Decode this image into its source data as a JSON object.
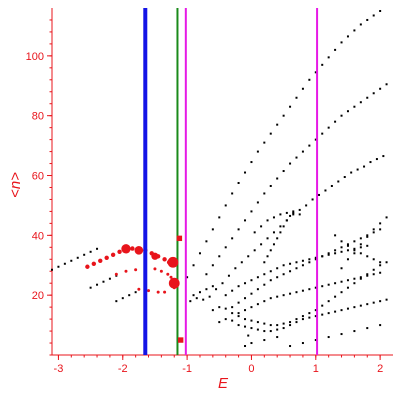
{
  "chart_data": {
    "type": "scatter",
    "title": "",
    "xlabel": "E",
    "ylabel": "<n>",
    "xlim": [
      -3.1,
      2.2
    ],
    "ylim": [
      0,
      116
    ],
    "x_ticks": [
      -3,
      -2,
      -1,
      0,
      1,
      2
    ],
    "y_ticks": [
      20,
      40,
      60,
      80,
      100
    ],
    "grid": false,
    "axis_color": "#e8141b",
    "vertical_lines": [
      {
        "x": -1.65,
        "color": "#1414e6",
        "style": "thick"
      },
      {
        "x": -1.15,
        "color": "#1a8a1a",
        "style": "medium"
      },
      {
        "x": -1.02,
        "color": "#e619e6",
        "style": "medium"
      },
      {
        "x": 1.02,
        "color": "#e619e6",
        "style": "medium"
      }
    ],
    "highlighted_points": {
      "color": "#e8141b",
      "points": [
        {
          "x": -1.22,
          "y": 31,
          "weight": 3
        },
        {
          "x": -1.2,
          "y": 24,
          "weight": 3
        },
        {
          "x": -1.12,
          "y": 39,
          "weight": 1.5
        },
        {
          "x": -1.1,
          "y": 5,
          "weight": 1.5
        },
        {
          "x": -1.95,
          "y": 35.5,
          "weight": 2.6
        },
        {
          "x": -1.75,
          "y": 35,
          "weight": 2.4
        },
        {
          "x": -1.5,
          "y": 33,
          "weight": 2
        }
      ],
      "band_points": [
        [
          -2.55,
          29.5
        ],
        [
          -2.45,
          30.5
        ],
        [
          -2.35,
          31.5
        ],
        [
          -2.25,
          32.5
        ],
        [
          -2.15,
          33.5
        ],
        [
          -2.05,
          34.5
        ],
        [
          -1.95,
          35.2
        ],
        [
          -1.85,
          35.6
        ],
        [
          -1.75,
          35.4
        ],
        [
          -1.65,
          35
        ],
        [
          -1.55,
          34
        ],
        [
          -1.45,
          33
        ],
        [
          -1.35,
          32
        ],
        [
          -1.28,
          31
        ],
        [
          -2.1,
          27
        ],
        [
          -1.95,
          28
        ],
        [
          -1.8,
          28.5
        ],
        [
          -1.65,
          29
        ],
        [
          -1.5,
          28.8
        ],
        [
          -1.4,
          28
        ],
        [
          -1.3,
          27
        ],
        [
          -1.25,
          26
        ],
        [
          -1.75,
          22
        ],
        [
          -1.6,
          21.5
        ],
        [
          -1.45,
          21
        ],
        [
          -1.35,
          21
        ],
        [
          -1.2,
          22.5
        ]
      ]
    },
    "series": [
      {
        "color": "#000000",
        "points": [
          [
            -3.1,
            28.5
          ],
          [
            -3.0,
            29.5
          ],
          [
            -2.9,
            30.5
          ],
          [
            -2.8,
            31.5
          ],
          [
            -2.7,
            32.5
          ],
          [
            -2.6,
            33.5
          ],
          [
            -2.5,
            34.5
          ],
          [
            -2.4,
            35.5
          ],
          [
            -2.5,
            22.5
          ],
          [
            -2.4,
            23.5
          ],
          [
            -2.3,
            24.5
          ],
          [
            -2.2,
            25.5
          ],
          [
            -2.1,
            26.5
          ],
          [
            -2.1,
            18
          ],
          [
            -2.0,
            19
          ],
          [
            -1.9,
            20
          ],
          [
            -1.8,
            21
          ],
          [
            -1.0,
            26
          ],
          [
            -0.9,
            30
          ],
          [
            -0.8,
            34
          ],
          [
            -0.7,
            38
          ],
          [
            -0.6,
            42
          ],
          [
            -0.5,
            46
          ],
          [
            -0.4,
            50
          ],
          [
            -0.3,
            54
          ],
          [
            -0.2,
            57.5
          ],
          [
            -0.1,
            61
          ],
          [
            0.0,
            64.5
          ],
          [
            0.1,
            68
          ],
          [
            0.2,
            71
          ],
          [
            0.3,
            74
          ],
          [
            0.4,
            77
          ],
          [
            0.5,
            80
          ],
          [
            0.6,
            83
          ],
          [
            0.7,
            86
          ],
          [
            0.8,
            89
          ],
          [
            0.9,
            92
          ],
          [
            1.0,
            94.5
          ],
          [
            1.1,
            97
          ],
          [
            1.2,
            99.5
          ],
          [
            1.3,
            102
          ],
          [
            1.4,
            104.5
          ],
          [
            1.5,
            106.5
          ],
          [
            1.6,
            108.5
          ],
          [
            1.7,
            110.5
          ],
          [
            1.8,
            112
          ],
          [
            1.9,
            113.5
          ],
          [
            2.0,
            115
          ],
          [
            -0.7,
            27
          ],
          [
            -0.6,
            30
          ],
          [
            -0.5,
            33
          ],
          [
            -0.4,
            36
          ],
          [
            -0.3,
            39
          ],
          [
            -0.2,
            42
          ],
          [
            -0.1,
            45
          ],
          [
            0.0,
            48
          ],
          [
            0.1,
            51
          ],
          [
            0.2,
            54
          ],
          [
            0.3,
            56.5
          ],
          [
            0.4,
            59
          ],
          [
            0.5,
            61.5
          ],
          [
            0.6,
            64
          ],
          [
            0.7,
            66
          ],
          [
            0.8,
            68
          ],
          [
            0.9,
            70
          ],
          [
            1.0,
            72
          ],
          [
            1.1,
            74
          ],
          [
            1.2,
            76
          ],
          [
            1.3,
            78
          ],
          [
            1.4,
            80
          ],
          [
            1.5,
            81.5
          ],
          [
            1.6,
            83
          ],
          [
            1.7,
            84.5
          ],
          [
            1.8,
            86
          ],
          [
            1.9,
            87.5
          ],
          [
            2.0,
            89
          ],
          [
            2.1,
            90.5
          ],
          [
            -0.55,
            22
          ],
          [
            -0.45,
            24
          ],
          [
            -0.35,
            26.5
          ],
          [
            -0.25,
            29
          ],
          [
            -0.15,
            31
          ],
          [
            -0.05,
            33
          ],
          [
            0.05,
            35
          ],
          [
            0.15,
            37
          ],
          [
            0.25,
            39
          ],
          [
            0.35,
            41
          ],
          [
            0.45,
            43
          ],
          [
            0.55,
            45
          ],
          [
            0.65,
            47
          ],
          [
            0.75,
            48.5
          ],
          [
            0.85,
            50
          ],
          [
            0.95,
            52
          ],
          [
            1.05,
            53.5
          ],
          [
            1.15,
            55
          ],
          [
            1.25,
            56.5
          ],
          [
            1.35,
            58
          ],
          [
            1.45,
            59.5
          ],
          [
            1.55,
            61
          ],
          [
            1.65,
            62
          ],
          [
            1.75,
            63
          ],
          [
            1.85,
            64.5
          ],
          [
            1.95,
            65.5
          ],
          [
            2.05,
            66.5
          ],
          [
            -0.9,
            20
          ],
          [
            -0.8,
            21
          ],
          [
            -0.7,
            22
          ],
          [
            -0.6,
            23
          ],
          [
            -0.95,
            18
          ],
          [
            -0.85,
            19
          ],
          [
            -0.75,
            18.5
          ],
          [
            -0.65,
            19.5
          ],
          [
            -0.6,
            15
          ],
          [
            -0.5,
            16
          ],
          [
            -0.4,
            15.5
          ],
          [
            -0.3,
            14
          ],
          [
            -0.2,
            13
          ],
          [
            -0.1,
            12
          ],
          [
            0.0,
            11.5
          ],
          [
            0.1,
            11
          ],
          [
            0.2,
            10.5
          ],
          [
            0.3,
            10
          ],
          [
            0.4,
            10
          ],
          [
            0.5,
            10.5
          ],
          [
            0.6,
            11
          ],
          [
            0.7,
            12
          ],
          [
            0.8,
            13
          ],
          [
            0.9,
            14
          ],
          [
            1.0,
            15
          ],
          [
            1.1,
            16.5
          ],
          [
            1.2,
            18
          ],
          [
            1.3,
            19.5
          ],
          [
            1.4,
            21
          ],
          [
            1.5,
            22.5
          ],
          [
            1.6,
            24
          ],
          [
            1.7,
            25.5
          ],
          [
            1.8,
            27
          ],
          [
            1.9,
            28.5
          ],
          [
            2.0,
            30
          ],
          [
            2.1,
            31
          ],
          [
            -0.5,
            11
          ],
          [
            -0.4,
            12
          ],
          [
            -0.3,
            11.5
          ],
          [
            -0.2,
            10
          ],
          [
            -0.1,
            9.5
          ],
          [
            0.0,
            9
          ],
          [
            0.1,
            8.5
          ],
          [
            0.2,
            8
          ],
          [
            0.3,
            8
          ],
          [
            0.4,
            8.5
          ],
          [
            0.5,
            9
          ],
          [
            0.6,
            10
          ],
          [
            0.7,
            11
          ],
          [
            0.8,
            12
          ],
          [
            0.9,
            12.5
          ],
          [
            1.0,
            13
          ],
          [
            1.1,
            13.5
          ],
          [
            1.2,
            14
          ],
          [
            1.3,
            14.5
          ],
          [
            1.4,
            15
          ],
          [
            1.5,
            15.5
          ],
          [
            1.6,
            16
          ],
          [
            1.7,
            16.5
          ],
          [
            1.8,
            17
          ],
          [
            1.9,
            17.5
          ],
          [
            2.0,
            18
          ],
          [
            2.1,
            18.5
          ],
          [
            -0.3,
            16
          ],
          [
            -0.2,
            17.5
          ],
          [
            -0.1,
            19
          ],
          [
            0.0,
            20.5
          ],
          [
            0.1,
            22
          ],
          [
            0.2,
            23.5
          ],
          [
            0.3,
            25
          ],
          [
            0.4,
            26
          ],
          [
            0.5,
            27
          ],
          [
            0.6,
            28
          ],
          [
            0.7,
            29
          ],
          [
            0.8,
            30
          ],
          [
            0.9,
            31
          ],
          [
            1.0,
            32
          ],
          [
            1.1,
            33
          ],
          [
            1.2,
            34
          ],
          [
            1.3,
            35
          ],
          [
            1.4,
            36
          ],
          [
            1.5,
            37
          ],
          [
            1.6,
            38
          ],
          [
            1.7,
            39
          ],
          [
            1.8,
            40
          ],
          [
            1.9,
            41
          ],
          [
            2.0,
            42
          ],
          [
            -0.4,
            20
          ],
          [
            -0.3,
            21.5
          ],
          [
            -0.2,
            23
          ],
          [
            -0.1,
            24
          ],
          [
            0.0,
            25
          ],
          [
            0.1,
            26
          ],
          [
            0.2,
            27
          ],
          [
            0.3,
            28
          ],
          [
            0.4,
            29
          ],
          [
            0.5,
            30
          ],
          [
            0.6,
            30.5
          ],
          [
            0.7,
            31
          ],
          [
            0.8,
            31.5
          ],
          [
            0.9,
            32
          ],
          [
            1.0,
            32.5
          ],
          [
            1.1,
            33
          ],
          [
            1.2,
            33.5
          ],
          [
            1.3,
            34
          ],
          [
            1.4,
            34.5
          ],
          [
            1.5,
            35
          ],
          [
            1.6,
            35.5
          ],
          [
            1.7,
            36
          ],
          [
            1.8,
            36.5
          ],
          [
            -0.2,
            14
          ],
          [
            -0.1,
            15
          ],
          [
            0.0,
            16
          ],
          [
            0.1,
            17
          ],
          [
            0.2,
            18
          ],
          [
            0.3,
            19
          ],
          [
            0.4,
            19.5
          ],
          [
            0.5,
            20
          ],
          [
            0.6,
            20.5
          ],
          [
            0.7,
            21
          ],
          [
            0.8,
            21.5
          ],
          [
            0.9,
            22
          ],
          [
            1.0,
            22.5
          ],
          [
            1.1,
            23
          ],
          [
            1.2,
            23.5
          ],
          [
            1.3,
            24
          ],
          [
            1.4,
            24.5
          ],
          [
            1.5,
            25
          ],
          [
            1.6,
            25.5
          ],
          [
            1.7,
            26
          ],
          [
            1.8,
            26.5
          ],
          [
            1.9,
            27
          ],
          [
            2.0,
            27.5
          ],
          [
            0.2,
            31
          ],
          [
            0.25,
            33
          ],
          [
            0.3,
            35
          ],
          [
            0.35,
            37
          ],
          [
            0.4,
            39
          ],
          [
            0.45,
            41
          ],
          [
            0.5,
            43
          ],
          [
            0.55,
            45
          ],
          [
            0.6,
            46.5
          ],
          [
            0.65,
            47.5
          ],
          [
            0.05,
            41
          ],
          [
            0.15,
            43
          ],
          [
            0.25,
            45
          ],
          [
            0.35,
            46
          ],
          [
            0.45,
            47
          ],
          [
            0.55,
            47.5
          ],
          [
            0.65,
            48
          ],
          [
            0.75,
            47
          ],
          [
            1.4,
            29
          ],
          [
            1.5,
            32
          ],
          [
            1.6,
            34
          ],
          [
            1.7,
            37
          ],
          [
            1.8,
            39.5
          ],
          [
            1.9,
            42
          ],
          [
            2.0,
            44
          ],
          [
            2.1,
            46
          ],
          [
            1.3,
            40
          ],
          [
            1.4,
            38
          ],
          [
            1.5,
            36.5
          ],
          [
            1.6,
            35
          ],
          [
            1.7,
            34
          ],
          [
            1.8,
            33
          ],
          [
            1.9,
            32
          ],
          [
            2.0,
            31
          ],
          [
            0.6,
            3
          ],
          [
            0.8,
            4
          ],
          [
            1.0,
            5
          ],
          [
            1.2,
            6
          ],
          [
            1.4,
            7
          ],
          [
            1.6,
            8
          ],
          [
            1.8,
            9
          ],
          [
            2.0,
            10
          ],
          [
            -0.1,
            3
          ],
          [
            0.0,
            4
          ],
          [
            0.2,
            5
          ],
          [
            0.4,
            6
          ],
          [
            -0.05,
            6.5
          ]
        ]
      }
    ]
  }
}
